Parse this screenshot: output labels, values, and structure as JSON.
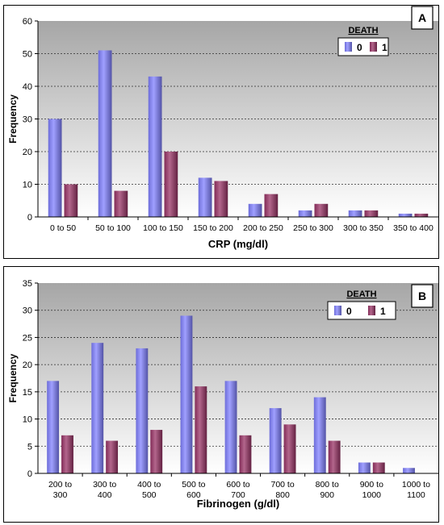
{
  "chart_data": [
    {
      "type": "bar",
      "panel_label": "A",
      "xlabel": "CRP (mg/dl)",
      "ylabel": "Frequency",
      "ylim": [
        0,
        60
      ],
      "yticks": [
        0,
        10,
        20,
        30,
        40,
        50,
        60
      ],
      "categories": [
        "0 to 50",
        "50 to 100",
        "100 to 150",
        "150 to 200",
        "200 to 250",
        "250 to 300",
        "300 to 350",
        "350 to 400"
      ],
      "legend_title": "DEATH",
      "legend_position": "top-right",
      "grid": true,
      "series": [
        {
          "name": "0",
          "color": "#8080ff",
          "values": [
            30,
            51,
            43,
            12,
            4,
            2,
            2,
            1
          ]
        },
        {
          "name": "1",
          "color": "#993366",
          "values": [
            10,
            8,
            20,
            11,
            7,
            4,
            2,
            1
          ]
        }
      ]
    },
    {
      "type": "bar",
      "panel_label": "B",
      "xlabel": "Fibrinogen (g/dl)",
      "ylabel": "Frequency",
      "ylim": [
        0,
        35
      ],
      "yticks": [
        0,
        5,
        10,
        15,
        20,
        25,
        30,
        35
      ],
      "categories": [
        "200 to 300",
        "300 to 400",
        "400 to 500",
        "500 to 600",
        "600 to 700",
        "700 to 800",
        "800 to 900",
        "900 to 1000",
        "1000 to 1100"
      ],
      "legend_title": "DEATH",
      "legend_position": "top-right",
      "grid": true,
      "series": [
        {
          "name": "0",
          "color": "#8080ff",
          "values": [
            17,
            24,
            23,
            29,
            17,
            12,
            14,
            2,
            1
          ]
        },
        {
          "name": "1",
          "color": "#993366",
          "values": [
            7,
            6,
            8,
            16,
            7,
            9,
            6,
            2,
            0
          ]
        }
      ]
    }
  ]
}
